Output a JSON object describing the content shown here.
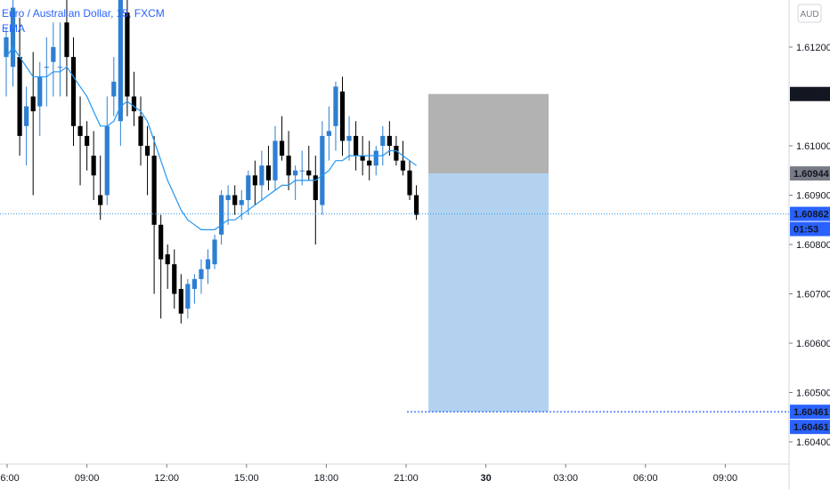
{
  "header": {
    "symbol_title": "Euro / Australian Dollar, 15, FXCM",
    "indicator": "EMA",
    "currency_button": "AUD"
  },
  "colors": {
    "bullish": "#2e7fd1",
    "bearish": "#000000",
    "ema": "#2196f3",
    "target_zone": "#b3d2f0",
    "stop_zone": "#b2b2b2",
    "axis_pill_dark": "#131722",
    "axis_pill_blue": "#2962ff",
    "axis_pill_gray": "#787b86"
  },
  "price_axis_ticks": [
    "1.61200",
    "1.61000",
    "1.60900",
    "1.60800",
    "1.60700",
    "1.60600",
    "1.60500",
    "1.60400"
  ],
  "price_labels": {
    "stop": "1.61105",
    "entry": "1.60944",
    "current": "1.60862",
    "countdown": "01:53",
    "target_line": "1.60461",
    "target": "1.60461"
  },
  "time_axis_ticks": [
    "06:00",
    "09:00",
    "12:00",
    "15:00",
    "18:00",
    "21:00",
    "30",
    "03:00",
    "06:00",
    "09:00"
  ],
  "chart_data": {
    "type": "candlestick",
    "timeframe": "15",
    "xlabels": [
      "06:00",
      "09:00",
      "12:00",
      "15:00",
      "18:00",
      "21:00",
      "30",
      "03:00",
      "06:00",
      "09:00"
    ],
    "ohlc": [
      [
        1.6118,
        1.6124,
        1.611,
        1.6122
      ],
      [
        1.6116,
        1.613,
        1.6112,
        1.6128
      ],
      [
        1.6118,
        1.6126,
        1.6098,
        1.6102
      ],
      [
        1.6104,
        1.6112,
        1.6096,
        1.6108
      ],
      [
        1.611,
        1.6119,
        1.609,
        1.6107
      ],
      [
        1.6108,
        1.6117,
        1.6102,
        1.6114
      ],
      [
        1.6116,
        1.6122,
        1.6108,
        1.6116
      ],
      [
        1.6117,
        1.6125,
        1.611,
        1.612
      ],
      [
        1.6116,
        1.6125,
        1.611,
        1.6116
      ],
      [
        1.6125,
        1.6132,
        1.611,
        1.6118
      ],
      [
        1.6118,
        1.6122,
        1.61,
        1.6104
      ],
      [
        1.6104,
        1.611,
        1.6092,
        1.6102
      ],
      [
        1.6102,
        1.6105,
        1.6095,
        1.61
      ],
      [
        1.6098,
        1.6103,
        1.6089,
        1.6094
      ],
      [
        1.609,
        1.6098,
        1.6085,
        1.6088
      ],
      [
        1.609,
        1.611,
        1.6088,
        1.6104
      ],
      [
        1.611,
        1.6118,
        1.6106,
        1.6113
      ],
      [
        1.6105,
        1.6135,
        1.61,
        1.6133
      ],
      [
        1.6127,
        1.6134,
        1.6106,
        1.611
      ],
      [
        1.611,
        1.6115,
        1.6104,
        1.6107
      ],
      [
        1.6106,
        1.611,
        1.6096,
        1.61
      ],
      [
        1.61,
        1.6104,
        1.609,
        1.6098
      ],
      [
        1.6098,
        1.6102,
        1.607,
        1.6084
      ],
      [
        1.6084,
        1.6086,
        1.6065,
        1.6077
      ],
      [
        1.6078,
        1.608,
        1.6071,
        1.6076
      ],
      [
        1.6076,
        1.6079,
        1.6067,
        1.607
      ],
      [
        1.6071,
        1.6074,
        1.6064,
        1.6066
      ],
      [
        1.6067,
        1.6073,
        1.6065,
        1.6072
      ],
      [
        1.6071,
        1.6074,
        1.6068,
        1.6073
      ],
      [
        1.6073,
        1.6077,
        1.607,
        1.6075
      ],
      [
        1.6075,
        1.6079,
        1.6072,
        1.6077
      ],
      [
        1.6076,
        1.6082,
        1.6075,
        1.6081
      ],
      [
        1.6082,
        1.6091,
        1.608,
        1.609
      ],
      [
        1.6089,
        1.6092,
        1.6084,
        1.609
      ],
      [
        1.609,
        1.6092,
        1.6086,
        1.6088
      ],
      [
        1.6088,
        1.6091,
        1.6085,
        1.6089
      ],
      [
        1.6089,
        1.6095,
        1.6086,
        1.6094
      ],
      [
        1.6094,
        1.6097,
        1.6088,
        1.6092
      ],
      [
        1.6092,
        1.6099,
        1.6089,
        1.6096
      ],
      [
        1.6096,
        1.61,
        1.6091,
        1.6093
      ],
      [
        1.6093,
        1.6104,
        1.6091,
        1.6101
      ],
      [
        1.6101,
        1.6106,
        1.6097,
        1.6098
      ],
      [
        1.6098,
        1.6103,
        1.6091,
        1.6094
      ],
      [
        1.6094,
        1.6096,
        1.6089,
        1.6095
      ],
      [
        1.6095,
        1.6099,
        1.6092,
        1.6095
      ],
      [
        1.6095,
        1.61,
        1.6093,
        1.6094
      ],
      [
        1.6094,
        1.6098,
        1.608,
        1.6089
      ],
      [
        1.6088,
        1.6105,
        1.6086,
        1.6102
      ],
      [
        1.6102,
        1.6108,
        1.6097,
        1.6103
      ],
      [
        1.6104,
        1.6113,
        1.6099,
        1.6112
      ],
      [
        1.6111,
        1.6114,
        1.6098,
        1.6101
      ],
      [
        1.6101,
        1.6106,
        1.6097,
        1.6102
      ],
      [
        1.6102,
        1.6105,
        1.6095,
        1.6098
      ],
      [
        1.6098,
        1.6102,
        1.6094,
        1.6097
      ],
      [
        1.6097,
        1.6101,
        1.6093,
        1.6096
      ],
      [
        1.6096,
        1.61,
        1.6094,
        1.6099
      ],
      [
        1.61,
        1.6104,
        1.6096,
        1.6102
      ],
      [
        1.6102,
        1.6105,
        1.6098,
        1.61
      ],
      [
        1.61,
        1.6102,
        1.6096,
        1.6097
      ],
      [
        1.6097,
        1.6101,
        1.6094,
        1.6095
      ],
      [
        1.6095,
        1.6097,
        1.6089,
        1.609
      ],
      [
        1.609,
        1.6092,
        1.6085,
        1.6086
      ]
    ],
    "ema_values": [
      1.6118,
      1.612,
      1.6118,
      1.6116,
      1.6114,
      1.6114,
      1.6114,
      1.6115,
      1.6115,
      1.6116,
      1.6114,
      1.6112,
      1.611,
      1.6107,
      1.6104,
      1.6104,
      1.6105,
      1.6108,
      1.6109,
      1.6108,
      1.6107,
      1.6105,
      1.6101,
      1.6097,
      1.6093,
      1.609,
      1.6087,
      1.6085,
      1.6084,
      1.6083,
      1.6083,
      1.6083,
      1.6084,
      1.6085,
      1.6085,
      1.6086,
      1.6087,
      1.6088,
      1.6089,
      1.609,
      1.6091,
      1.6092,
      1.6092,
      1.6093,
      1.6093,
      1.6093,
      1.6093,
      1.6094,
      1.6095,
      1.6097,
      1.6097,
      1.6098,
      1.6098,
      1.6098,
      1.6098,
      1.6098,
      1.6098,
      1.6099,
      1.6099,
      1.6098,
      1.6097,
      1.6096
    ],
    "position": {
      "side": "short",
      "stop": 1.61105,
      "entry": 1.60944,
      "current": 1.60862,
      "target": 1.60461
    }
  }
}
